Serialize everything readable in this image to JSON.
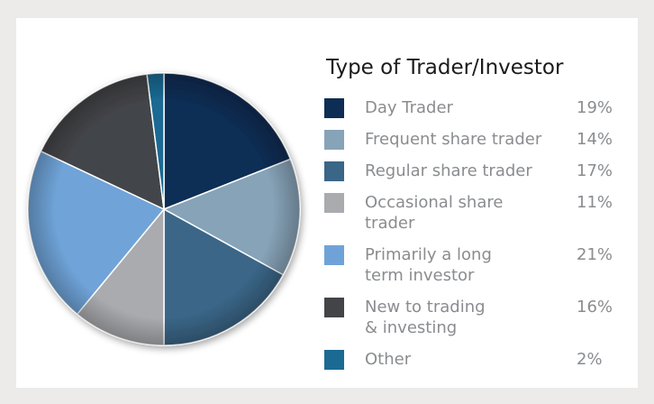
{
  "chart_data": {
    "type": "pie",
    "title": "Type of Trader/Investor",
    "categories": [
      "Day Trader",
      "Frequent share trader",
      "Regular share trader",
      "Occasional share\ntrader",
      "Primarily a long\nterm investor",
      "New to trading\n& investing",
      "Other"
    ],
    "values": [
      19,
      14,
      17,
      11,
      21,
      16,
      2
    ],
    "value_labels": [
      "19%",
      "14%",
      "17%",
      "11%",
      "21%",
      "16%",
      "2%"
    ],
    "colors": [
      "#0d2d54",
      "#87a3b8",
      "#3a6687",
      "#a9abaf",
      "#6fa3d8",
      "#434448",
      "#1a6a93"
    ]
  }
}
